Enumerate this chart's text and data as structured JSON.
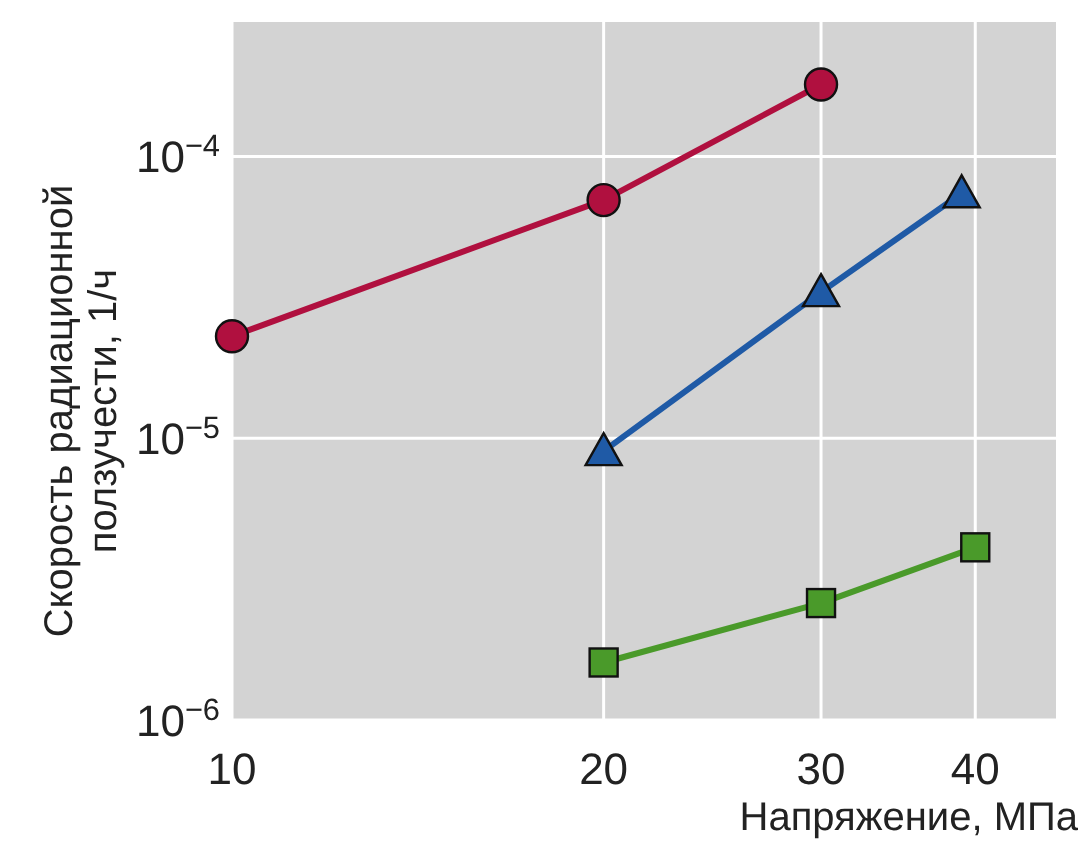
{
  "chart_data": {
    "type": "line",
    "xlabel": "Напряжение, МПа",
    "ylabel": "Скорость радиационной\nползучести, 1/ч",
    "log": "xy",
    "grid": true,
    "line_style": "solid",
    "xlim": [
      10,
      46.5
    ],
    "xticks": [
      10,
      20,
      30,
      40
    ],
    "ylim": [
      1e-06,
      0.0003
    ],
    "yticks": [
      {
        "value": 1e-06,
        "label": "10$^{−6}$"
      },
      {
        "value": 1e-05,
        "label": "10$^{−5}$"
      },
      {
        "value": 0.0001,
        "label": "10$^{−4}$"
      }
    ],
    "series": [
      {
        "color": "#b0103f",
        "marker": "circle",
        "x": [
          10,
          20,
          30
        ],
        "values": [
          2.3e-05,
          7e-05,
          0.00018
        ]
      },
      {
        "color": "#1f5aa6",
        "marker": "triangle",
        "x": [
          20,
          30,
          39
        ],
        "values": [
          9e-06,
          3.3e-05,
          7.4e-05
        ]
      },
      {
        "color": "#4a9a2a",
        "marker": "square",
        "x": [
          20,
          30,
          40
        ],
        "values": [
          1.6e-06,
          2.6e-06,
          4.1e-06
        ]
      }
    ]
  }
}
